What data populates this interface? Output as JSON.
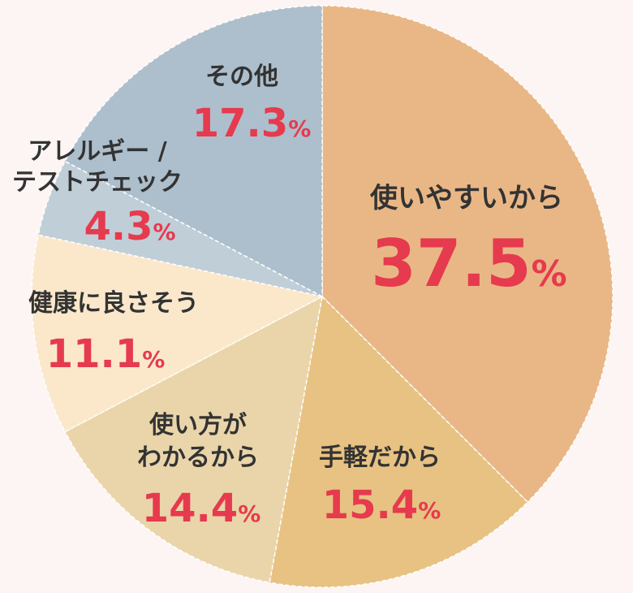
{
  "chart_data": {
    "type": "pie",
    "title": "",
    "start": "top",
    "direction": "clockwise",
    "percent_sign": "%",
    "slices": [
      {
        "name": "使いやすいから",
        "lines": [
          "使いやすいから"
        ],
        "value": 37.5,
        "value_label": "37.5",
        "color": "#e9b786"
      },
      {
        "name": "手軽だから",
        "lines": [
          "手軽だから"
        ],
        "value": 15.4,
        "value_label": "15.4",
        "color": "#e7c282"
      },
      {
        "name": "使い方がわかるから",
        "lines": [
          "使い方が",
          "わかるから"
        ],
        "value": 14.4,
        "value_label": "14.4",
        "color": "#ead5aa"
      },
      {
        "name": "健康に良さそう",
        "lines": [
          "健康に良さそう"
        ],
        "value": 11.1,
        "value_label": "11.1",
        "color": "#fbe8cb"
      },
      {
        "name": "アレルギー / テストチェック",
        "lines": [
          "アレルギー /",
          "テストチェック"
        ],
        "value": 4.3,
        "value_label": "4.3",
        "color": "#c0ced8"
      },
      {
        "name": "その他",
        "lines": [
          "その他"
        ],
        "value": 17.3,
        "value_label": "17.3",
        "color": "#adbfcc"
      }
    ]
  }
}
